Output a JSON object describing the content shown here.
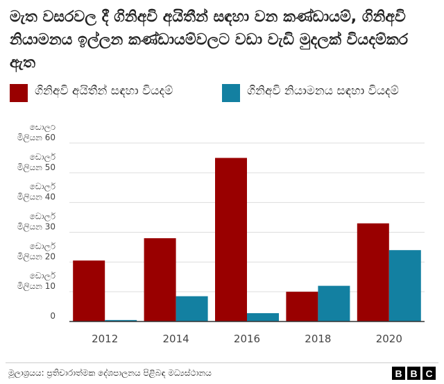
{
  "title": "මැත වසරවල දී ගිනිඅවි අයිතීන් සඳහා වන කණ්ඩායම්, ගිනිඅවි නියාමනය ඉල්ලන කණ්ඩායම්වලට වඩා වැඩි මුදලක් වියදම්කර ඇත",
  "source": "මූලාශ්‍රයය: ප්‍රතිචාරාත්මක දේශපාලනය පිළිබඳ මධ්‍යස්ථානය",
  "logo": [
    "B",
    "B",
    "C"
  ],
  "colors": {
    "rights": "#990000",
    "regulation": "#1380A1",
    "gridline": "#dddddd",
    "axis": "#333333"
  },
  "chart_data": {
    "type": "bar",
    "categories": [
      "2012",
      "2014",
      "2016",
      "2018",
      "2020"
    ],
    "series": [
      {
        "name": "ගිනිඅවි අයිතීන් සඳහා වියදම්",
        "values": [
          20.5,
          28,
          55,
          10,
          33
        ]
      },
      {
        "name": "ගිනිඅවි නියාමනය සඳහා වියදම්",
        "values": [
          0.5,
          8.5,
          2.8,
          12,
          24
        ]
      }
    ],
    "ylim": [
      0,
      60
    ],
    "yticks": [
      {
        "value": 0,
        "label": [
          "0"
        ]
      },
      {
        "value": 10,
        "label": [
          "ඩොලර්",
          "මිලියන 10"
        ]
      },
      {
        "value": 20,
        "label": [
          "ඩොලර්",
          "මිලියන 20"
        ]
      },
      {
        "value": 30,
        "label": [
          "ඩොලර්",
          "මිලියන 30"
        ]
      },
      {
        "value": 40,
        "label": [
          "ඩොලර්",
          "මිලියන 40"
        ]
      },
      {
        "value": 50,
        "label": [
          "ඩොලර්",
          "මිලියන 50"
        ]
      },
      {
        "value": 60,
        "label": [
          "ඩොලර්",
          "මිලියන 60"
        ]
      }
    ],
    "grid": true,
    "legend_position": "top-left"
  }
}
